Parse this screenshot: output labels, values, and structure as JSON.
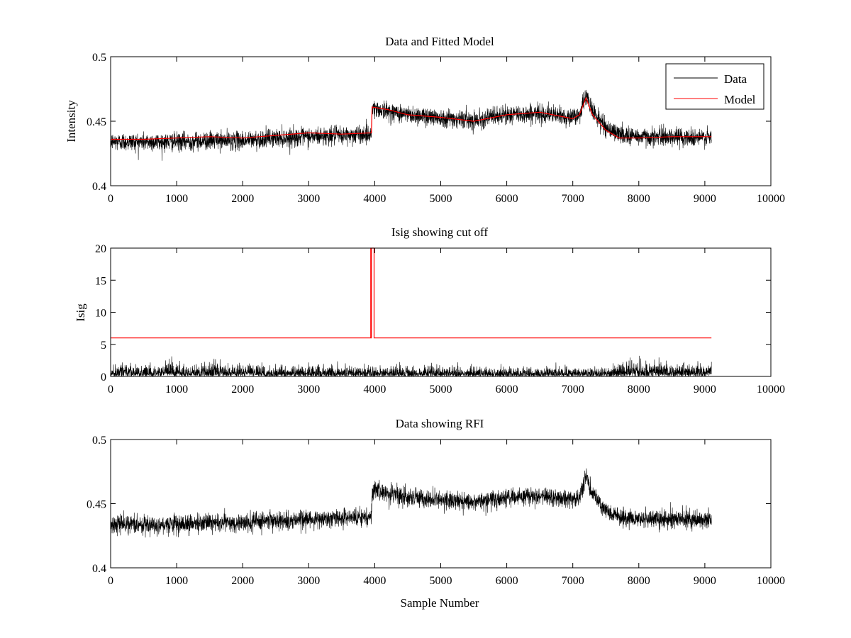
{
  "chart_data": [
    {
      "type": "line",
      "title": "Data and Fitted Model",
      "xlabel": "",
      "ylabel": "Intensity",
      "xlim": [
        0,
        10000
      ],
      "ylim": [
        0.4,
        0.5
      ],
      "xticks": [
        "0",
        "1000",
        "2000",
        "3000",
        "4000",
        "5000",
        "6000",
        "7000",
        "8000",
        "9000",
        "10000"
      ],
      "yticks": [
        "0.4",
        "0.45",
        "0.5"
      ],
      "grid": false,
      "legend": {
        "placement": "top-right",
        "entries": [
          "Data",
          "Model"
        ]
      },
      "series": [
        {
          "name": "Data",
          "color": "#000000",
          "noise_std": 0.0035,
          "trend_x": [
            0,
            500,
            1000,
            1500,
            2000,
            2500,
            3000,
            3500,
            3950,
            3960,
            4500,
            5000,
            5500,
            6000,
            6500,
            7000,
            7100,
            7200,
            7300,
            7500,
            7700,
            8000,
            8500,
            9100
          ],
          "trend_y": [
            0.434,
            0.434,
            0.434,
            0.435,
            0.435,
            0.437,
            0.438,
            0.439,
            0.44,
            0.46,
            0.455,
            0.453,
            0.451,
            0.455,
            0.456,
            0.453,
            0.455,
            0.47,
            0.458,
            0.445,
            0.44,
            0.438,
            0.438,
            0.437
          ]
        },
        {
          "name": "Model",
          "color": "#ff0000",
          "x": [
            0,
            500,
            1000,
            1500,
            2000,
            2500,
            3000,
            3500,
            3950,
            3960,
            4200,
            4500,
            5000,
            5500,
            6000,
            6500,
            7000,
            7100,
            7200,
            7300,
            7500,
            7700,
            8000,
            8500,
            9100
          ],
          "y": [
            0.436,
            0.436,
            0.437,
            0.438,
            0.437,
            0.439,
            0.441,
            0.44,
            0.441,
            0.461,
            0.459,
            0.455,
            0.453,
            0.45,
            0.455,
            0.457,
            0.452,
            0.455,
            0.468,
            0.455,
            0.443,
            0.437,
            0.437,
            0.438,
            0.438
          ]
        }
      ]
    },
    {
      "type": "line",
      "title": "Isig showing cut off",
      "xlabel": "",
      "ylabel": "Isig",
      "xlim": [
        0,
        10000
      ],
      "ylim": [
        0,
        20
      ],
      "xticks": [
        "0",
        "1000",
        "2000",
        "3000",
        "4000",
        "5000",
        "6000",
        "7000",
        "8000",
        "9000",
        "10000"
      ],
      "yticks": [
        "0",
        "5",
        "10",
        "15",
        "20"
      ],
      "grid": false,
      "series": [
        {
          "color": "#000000",
          "noise_type": "abs",
          "x_range": [
            0,
            9100
          ],
          "scale_x": [
            0,
            1500,
            3000,
            6000,
            7500,
            7800,
            9100
          ],
          "scale_y": [
            0.8,
            0.9,
            0.7,
            0.6,
            0.6,
            1.0,
            0.9
          ]
        },
        {
          "color": "#ff0000",
          "x": [
            0,
            3940,
            3940,
            3945,
            3945,
            3950,
            3950,
            3990,
            3990,
            9100
          ],
          "y": [
            6,
            6,
            20,
            20,
            6,
            6,
            20,
            20,
            6,
            6
          ]
        }
      ]
    },
    {
      "type": "line",
      "title": "Data showing RFI",
      "xlabel": "Sample Number",
      "ylabel": "",
      "xlim": [
        0,
        10000
      ],
      "ylim": [
        0.4,
        0.5
      ],
      "xticks": [
        "0",
        "1000",
        "2000",
        "3000",
        "4000",
        "5000",
        "6000",
        "7000",
        "8000",
        "9000",
        "10000"
      ],
      "yticks": [
        "0.4",
        "0.45",
        "0.5"
      ],
      "grid": false,
      "series": [
        {
          "color": "#000000",
          "noise_std": 0.0035,
          "trend_x": [
            0,
            500,
            1000,
            1500,
            2000,
            2500,
            3000,
            3500,
            3950,
            3960,
            4500,
            5000,
            5500,
            6000,
            6500,
            7000,
            7100,
            7200,
            7300,
            7500,
            7700,
            8000,
            8500,
            9100
          ],
          "trend_y": [
            0.434,
            0.434,
            0.434,
            0.435,
            0.435,
            0.437,
            0.438,
            0.439,
            0.44,
            0.46,
            0.455,
            0.453,
            0.451,
            0.455,
            0.456,
            0.453,
            0.455,
            0.47,
            0.458,
            0.445,
            0.44,
            0.438,
            0.438,
            0.437
          ]
        }
      ]
    }
  ]
}
